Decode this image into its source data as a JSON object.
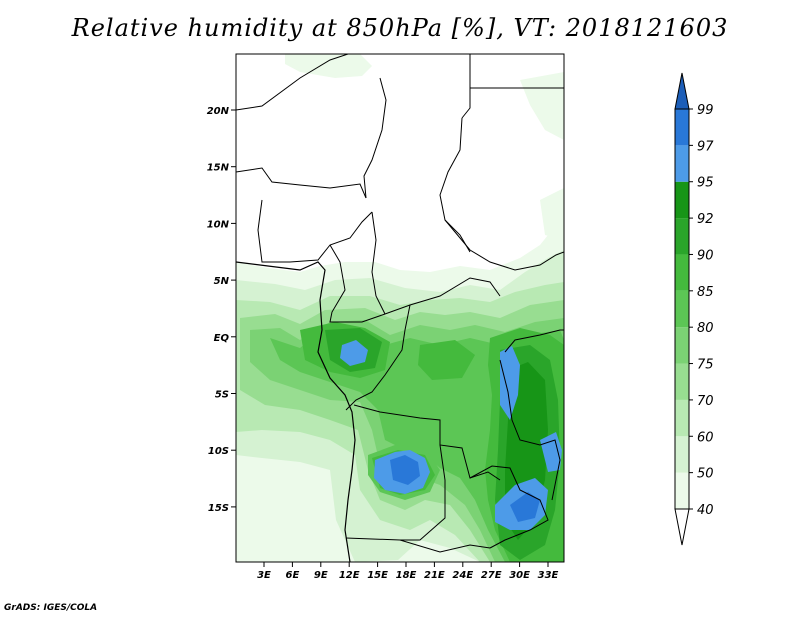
{
  "title": "Relative humidity at 850hPa [%], VT: 2018121603",
  "credit": "GrADS: IGES/COLA",
  "map": {
    "lat_labels": [
      "20N",
      "15N",
      "10N",
      "5N",
      "EQ",
      "5S",
      "10S",
      "15S"
    ],
    "lon_labels": [
      "3E",
      "6E",
      "9E",
      "12E",
      "15E",
      "18E",
      "21E",
      "24E",
      "27E",
      "30E",
      "33E"
    ]
  },
  "colorbar": {
    "levels": [
      "40",
      "50",
      "60",
      "70",
      "75",
      "80",
      "85",
      "90",
      "92",
      "95",
      "97",
      "99"
    ],
    "colors": [
      "#ecfaea",
      "#d5f2d2",
      "#b8e9b3",
      "#98dd91",
      "#7bd274",
      "#5cc655",
      "#44ba3d",
      "#2aa52a",
      "#179517",
      "#4d9be8",
      "#2978d8",
      "#1c5eb8"
    ],
    "under_color": "#ffffff",
    "over_color": "#1c5eb8"
  }
}
